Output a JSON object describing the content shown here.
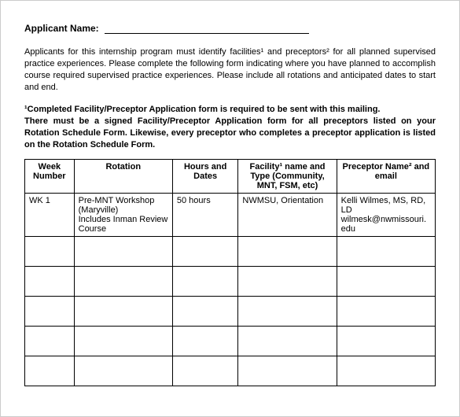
{
  "applicant_label": "Applicant Name:",
  "intro_html": "Applicants for this internship program must identify facilities¹ and preceptors² for all planned supervised practice experiences.  Please complete the following form indicating where you have planned to accomplish course required supervised practice experiences.  Please include all rotations and anticipated dates to start and end.",
  "note_html": "¹Completed Facility/Preceptor Application form is required to be sent with this mailing.\nThere must be a signed Facility/Preceptor Application form for all preceptors listed on your Rotation Schedule Form.  Likewise, every preceptor who completes a preceptor application is listed on the Rotation Schedule Form.",
  "table": {
    "columns": [
      "Week Number",
      "Rotation",
      "Hours and Dates",
      "Facility¹ name and Type (Community, MNT, FSM, etc)",
      "Preceptor Name² and email"
    ],
    "col_widths_pct": [
      12,
      24,
      16,
      24,
      24
    ],
    "rows": [
      {
        "week": "WK 1",
        "rotation": "Pre-MNT Workshop (Maryville)\nIncludes Inman Review Course",
        "hours": "50 hours",
        "facility": "NWMSU, Orientation",
        "preceptor": "Kelli Wilmes, MS, RD, LD\nwilmesk@nwmissouri.edu"
      }
    ],
    "empty_rows": 5,
    "border_color": "#000000",
    "header_font_weight": "bold",
    "font_size_pt": 11
  },
  "colors": {
    "page_bg": "#ffffff",
    "text": "#000000",
    "outer_border": "#cccccc"
  }
}
